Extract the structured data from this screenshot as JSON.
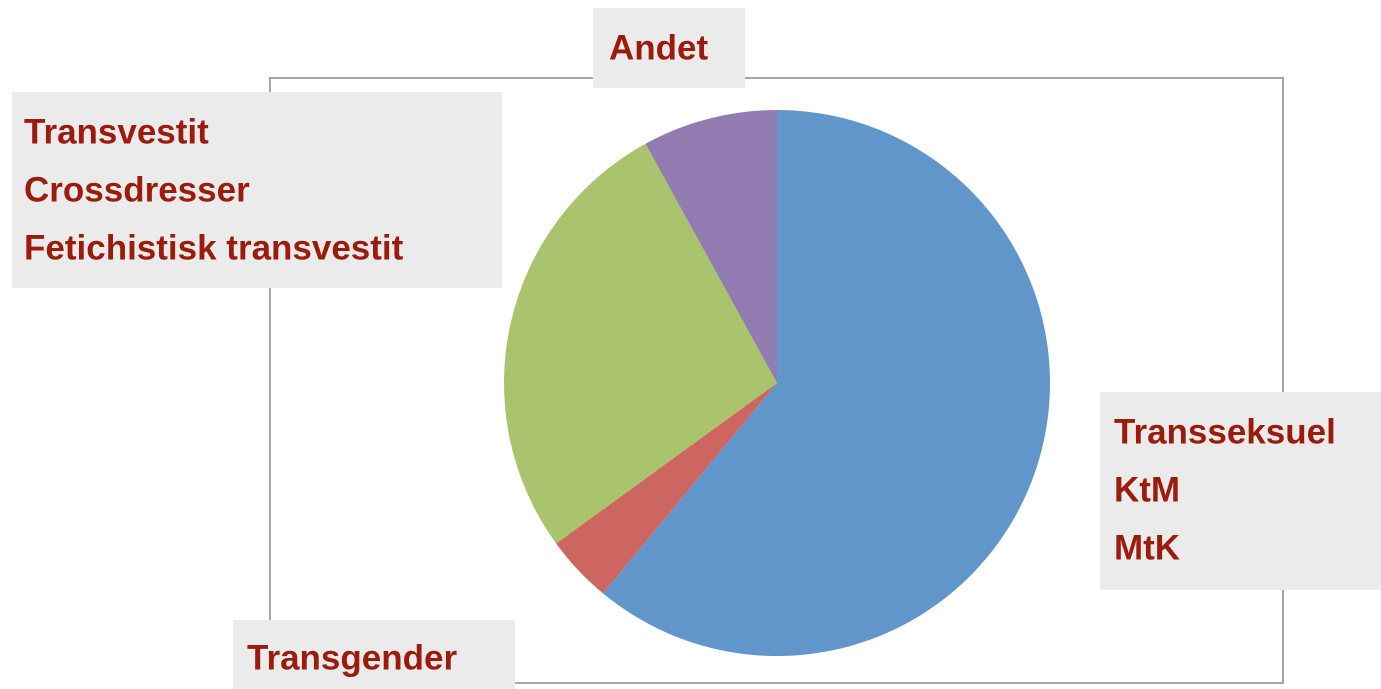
{
  "chart_data": {
    "type": "pie",
    "categories": [
      [
        "Transseksuel",
        "KtM",
        "MtK"
      ],
      [
        "Transgender"
      ],
      [
        "Transvestit",
        "Crossdresser",
        "Fetichistisk transvestit"
      ],
      [
        "Andet"
      ]
    ],
    "values": [
      61,
      4,
      27,
      8
    ],
    "colors": [
      "#6096c9",
      "#cd6660",
      "#a9c46c",
      "#927bb0"
    ]
  }
}
